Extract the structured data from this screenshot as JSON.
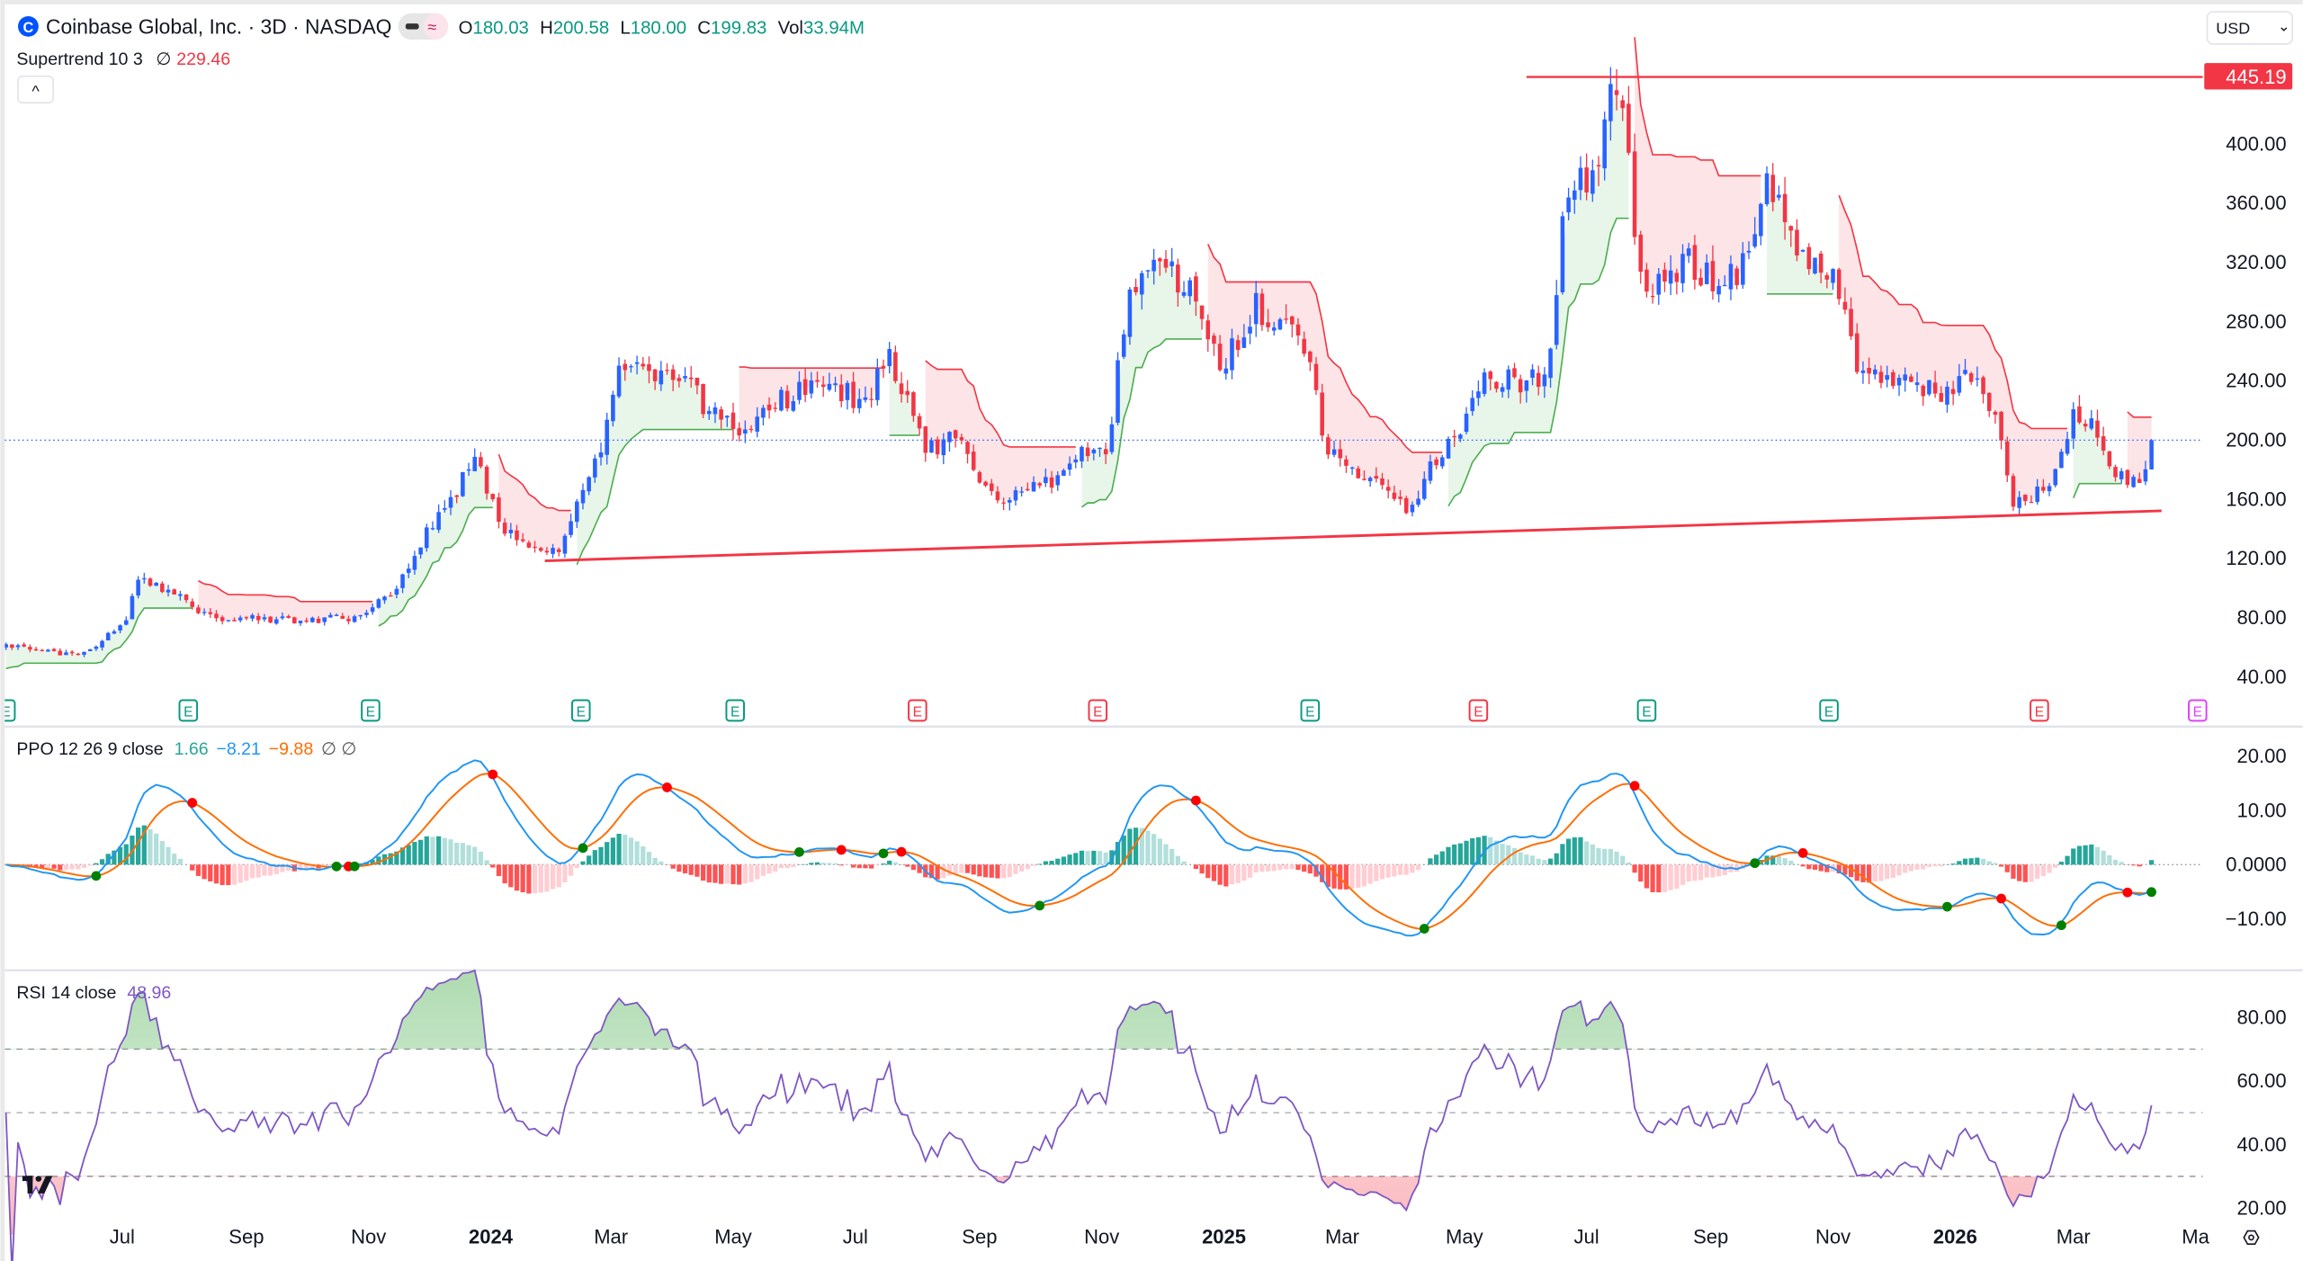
{
  "header": {
    "title": "Coinbase Global, Inc. · 3D · NASDAQ",
    "ohlc": {
      "o_label": "O",
      "o": "180.03",
      "h_label": "H",
      "h": "200.58",
      "l_label": "L",
      "l": "180.00",
      "c_label": "C",
      "c": "199.83",
      "vol_label": "Vol",
      "vol": "33.94M"
    },
    "supertrend_label": "Supertrend 10 3",
    "supertrend_icon": "∅",
    "supertrend_value": "229.46",
    "collapse_icon": "^",
    "currency": "USD",
    "currency_icon": "⌄"
  },
  "ppo_legend": {
    "label": "PPO 12 26 9 close",
    "hist": "1.66",
    "ppo": "−8.21",
    "signal": "−9.88",
    "icons": "∅ ∅"
  },
  "rsi_legend": {
    "label": "RSI 14 close",
    "value": "48.96"
  },
  "colors": {
    "up": "#2962ff",
    "down": "#f23645",
    "st_up": "#4caf50",
    "st_down": "#f23645",
    "st_up_fill": "#e8f5e9",
    "st_down_fill": "#fde4e6",
    "ppo": "#2196f3",
    "signal": "#ff6d00",
    "rsi": "#7e57c2",
    "earn_green": "#089981",
    "earn_red": "#f23645",
    "earn_future": "#e040fb",
    "current": "#2962ff"
  },
  "price_axis": [
    "400.00",
    "360.00",
    "320.00",
    "280.00",
    "240.00",
    "200.00",
    "160.00",
    "120.00",
    "80.00",
    "40.00"
  ],
  "ppo_axis": [
    "20.00",
    "10.00",
    "0.0000",
    "−10.00"
  ],
  "rsi_axis": [
    "80.00",
    "60.00",
    "40.00",
    "20.00"
  ],
  "price_tag": "445.19",
  "time_axis": [
    {
      "date": "2023-07-01",
      "label": "Jul",
      "bold": false
    },
    {
      "date": "2023-09-01",
      "label": "Sep",
      "bold": false
    },
    {
      "date": "2023-11-01",
      "label": "Nov",
      "bold": false
    },
    {
      "date": "2024-01-01",
      "label": "2024",
      "bold": true
    },
    {
      "date": "2024-03-01",
      "label": "Mar",
      "bold": false
    },
    {
      "date": "2024-05-01",
      "label": "May",
      "bold": false
    },
    {
      "date": "2024-07-01",
      "label": "Jul",
      "bold": false
    },
    {
      "date": "2024-09-01",
      "label": "Sep",
      "bold": false
    },
    {
      "date": "2024-11-01",
      "label": "Nov",
      "bold": false
    },
    {
      "date": "2025-01-01",
      "label": "2025",
      "bold": true
    },
    {
      "date": "2025-03-01",
      "label": "Mar",
      "bold": false
    },
    {
      "date": "2025-05-01",
      "label": "May",
      "bold": false
    },
    {
      "date": "2025-07-01",
      "label": "Jul",
      "bold": false
    },
    {
      "date": "2025-09-01",
      "label": "Sep",
      "bold": false
    },
    {
      "date": "2025-11-01",
      "label": "Nov",
      "bold": false
    },
    {
      "date": "2026-01-01",
      "label": "2026",
      "bold": true
    },
    {
      "date": "2026-03-01",
      "label": "Mar",
      "bold": false
    },
    {
      "date": "2026-05-01",
      "label": "Ma",
      "bold": false
    }
  ],
  "earnings": [
    {
      "date": "2023-05-04",
      "type": "green",
      "label": "E"
    },
    {
      "date": "2023-08-03",
      "type": "green",
      "label": "E"
    },
    {
      "date": "2023-11-02",
      "type": "green",
      "label": "E"
    },
    {
      "date": "2024-02-15",
      "type": "green",
      "label": "E"
    },
    {
      "date": "2024-05-02",
      "type": "green",
      "label": "E"
    },
    {
      "date": "2024-08-01",
      "type": "red",
      "label": "E"
    },
    {
      "date": "2024-10-30",
      "type": "red",
      "label": "E"
    },
    {
      "date": "2025-02-13",
      "type": "green",
      "label": "E"
    },
    {
      "date": "2025-05-08",
      "type": "red",
      "label": "E"
    },
    {
      "date": "2025-07-31",
      "type": "green",
      "label": "E"
    },
    {
      "date": "2025-10-30",
      "type": "green",
      "label": "E"
    },
    {
      "date": "2026-02-12",
      "type": "red",
      "label": "E"
    },
    {
      "date": "2026-05-02",
      "type": "future",
      "label": "E"
    }
  ],
  "chart_data": {
    "type": "candlestick",
    "symbol": "Coinbase Global, Inc.",
    "interval": "3D",
    "exchange": "NASDAQ",
    "ylim": [
      40,
      445.19
    ],
    "grid": false,
    "approx_closes": [
      [
        "2023-05-04",
        60
      ],
      [
        "2023-06-11",
        55
      ],
      [
        "2023-07-02",
        75
      ],
      [
        "2023-07-09",
        105
      ],
      [
        "2023-07-27",
        95
      ],
      [
        "2023-08-15",
        80
      ],
      [
        "2023-09-25",
        78
      ],
      [
        "2023-10-28",
        80
      ],
      [
        "2023-11-14",
        100
      ],
      [
        "2023-11-29",
        135
      ],
      [
        "2023-12-14",
        165
      ],
      [
        "2023-12-25",
        185
      ],
      [
        "2024-01-08",
        140
      ],
      [
        "2024-01-19",
        125
      ],
      [
        "2024-02-03",
        125
      ],
      [
        "2024-02-14",
        160
      ],
      [
        "2024-02-25",
        195
      ],
      [
        "2024-03-03",
        240
      ],
      [
        "2024-03-10",
        260
      ],
      [
        "2024-03-21",
        245
      ],
      [
        "2024-04-09",
        235
      ],
      [
        "2024-04-23",
        215
      ],
      [
        "2024-05-08",
        205
      ],
      [
        "2024-05-22",
        225
      ],
      [
        "2024-06-14",
        240
      ],
      [
        "2024-07-06",
        225
      ],
      [
        "2024-07-17",
        260
      ],
      [
        "2024-07-28",
        225
      ],
      [
        "2024-08-04",
        195
      ],
      [
        "2024-08-22",
        200
      ],
      [
        "2024-09-02",
        165
      ],
      [
        "2024-09-17",
        160
      ],
      [
        "2024-10-10",
        175
      ],
      [
        "2024-10-28",
        200
      ],
      [
        "2024-11-04",
        185
      ],
      [
        "2024-11-08",
        240
      ],
      [
        "2024-11-16",
        300
      ],
      [
        "2024-11-30",
        320
      ],
      [
        "2024-12-15",
        300
      ],
      [
        "2024-12-30",
        250
      ],
      [
        "2025-01-17",
        290
      ],
      [
        "2025-02-04",
        270
      ],
      [
        "2025-02-15",
        240
      ],
      [
        "2025-02-19",
        200
      ],
      [
        "2025-03-05",
        180
      ],
      [
        "2025-03-24",
        165
      ],
      [
        "2025-04-04",
        150
      ],
      [
        "2025-04-15",
        185
      ],
      [
        "2025-04-26",
        200
      ],
      [
        "2025-05-07",
        240
      ],
      [
        "2025-05-18",
        240
      ],
      [
        "2025-06-09",
        240
      ],
      [
        "2025-06-16",
        290
      ],
      [
        "2025-06-20",
        360
      ],
      [
        "2025-07-04",
        380
      ],
      [
        "2025-07-12",
        420
      ],
      [
        "2025-07-15",
        440
      ],
      [
        "2025-07-23",
        390
      ],
      [
        "2025-07-26",
        320
      ],
      [
        "2025-08-03",
        300
      ],
      [
        "2025-08-21",
        320
      ],
      [
        "2025-09-08",
        305
      ],
      [
        "2025-09-23",
        330
      ],
      [
        "2025-09-30",
        380
      ],
      [
        "2025-10-08",
        340
      ],
      [
        "2025-10-22",
        320
      ],
      [
        "2025-11-02",
        310
      ],
      [
        "2025-11-13",
        250
      ],
      [
        "2025-11-28",
        245
      ],
      [
        "2025-12-16",
        235
      ],
      [
        "2025-12-31",
        230
      ],
      [
        "2026-01-11",
        250
      ],
      [
        "2026-01-22",
        210
      ],
      [
        "2026-01-29",
        160
      ],
      [
        "2026-02-09",
        160
      ],
      [
        "2026-02-20",
        180
      ],
      [
        "2026-02-28",
        215
      ],
      [
        "2026-03-11",
        210
      ],
      [
        "2026-03-22",
        180
      ],
      [
        "2026-03-29",
        170
      ],
      [
        "2026-04-07",
        175
      ],
      [
        "2026-04-10",
        200
      ]
    ],
    "last_bar": {
      "open": 180.03,
      "high": 200.58,
      "low": 180.0,
      "close": 199.83
    },
    "current_price": 199.83,
    "resistance_line": {
      "price": 445.19,
      "from": "2025-06-01"
    },
    "support_line": [
      [
        "2024-01-28",
        118.3
      ],
      [
        "2026-04-14",
        152.1
      ]
    ],
    "indicators": {
      "supertrend": {
        "period": 10,
        "multiplier": 3,
        "value": 229.46
      },
      "ppo": {
        "fast": 12,
        "slow": 26,
        "signal": 9,
        "hist": 1.66,
        "ppo": -8.21,
        "signal_value": -9.88,
        "ylim": [
          -16,
          22
        ]
      },
      "rsi": {
        "period": 14,
        "value": 48.96,
        "bands": [
          70,
          50,
          30
        ],
        "ylim": [
          20,
          90
        ]
      }
    }
  }
}
